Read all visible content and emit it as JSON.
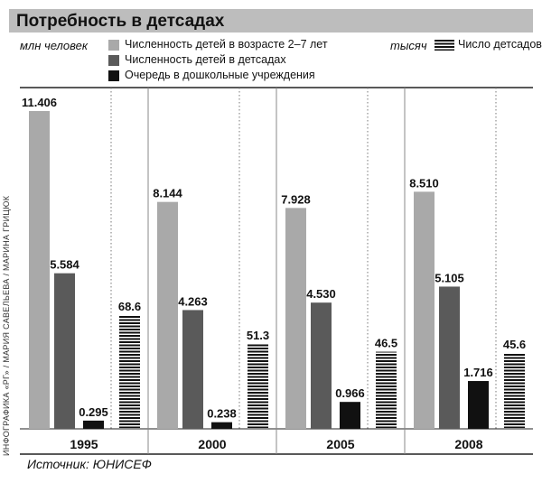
{
  "header": {
    "title": "Потребность в детсадах"
  },
  "units": {
    "left": "млн человек",
    "right": "тысяч"
  },
  "legend": [
    {
      "label": "Численность детей в возрасте 2–7 лет",
      "color": "#a9a9a9"
    },
    {
      "label": "Численность детей в детсадах",
      "color": "#5a5a5a"
    },
    {
      "label": "Очередь в дошкольные учреждения",
      "color": "#111111"
    },
    {
      "label": "Число детсадов",
      "color": "#111111",
      "pattern": "stripes"
    }
  ],
  "credit": "ИНФОГРАФИКА «РГ» / МАРИЯ САВЕЛЬЕВА / МАРИНА ГРИЦЮК",
  "source": "Источник: ЮНИСЕФ",
  "chart_data": {
    "type": "bar",
    "categories": [
      "1995",
      "2000",
      "2005",
      "2008"
    ],
    "series": [
      {
        "name": "Численность детей в возрасте 2–7 лет",
        "axis": "left",
        "values": [
          11.406,
          8.144,
          7.928,
          8.51
        ],
        "labels": [
          "11.406",
          "8.144",
          "7.928",
          "8.510"
        ]
      },
      {
        "name": "Численность детей в детсадах",
        "axis": "left",
        "values": [
          5.584,
          4.263,
          4.53,
          5.105
        ],
        "labels": [
          "5.584",
          "4.263",
          "4.530",
          "5.105"
        ]
      },
      {
        "name": "Очередь в дошкольные учреждения",
        "axis": "left",
        "values": [
          0.295,
          0.238,
          0.966,
          1.716
        ],
        "labels": [
          "0.295",
          "0.238",
          "0.966",
          "1.716"
        ]
      },
      {
        "name": "Число детсадов",
        "axis": "right",
        "values": [
          68.6,
          51.3,
          46.5,
          45.6
        ],
        "labels": [
          "68.6",
          "51.3",
          "46.5",
          "45.6"
        ]
      }
    ],
    "ylabel": "млн человек",
    "y2label": "тысяч",
    "colors": [
      "#a9a9a9",
      "#5a5a5a",
      "#111111",
      "#111111"
    ]
  }
}
